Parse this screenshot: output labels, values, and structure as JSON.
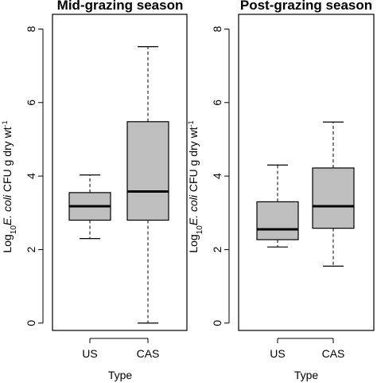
{
  "chart_data": [
    {
      "type": "boxplot",
      "title": "Mid-grazing season",
      "xlabel": "Type",
      "ylabel": {
        "prefix": "Log",
        "sub": "10",
        "italic": "E. coli",
        "rest": " CFU g dry wt",
        "sup": "-1"
      },
      "categories": [
        "US",
        "CAS"
      ],
      "ylim": [
        -0.2,
        8.4
      ],
      "yticks": [
        "0",
        "2",
        "4",
        "6",
        "8"
      ],
      "series": [
        {
          "category": "US",
          "min": 2.3,
          "q1": 2.8,
          "median": 3.18,
          "q3": 3.55,
          "max": 4.03
        },
        {
          "category": "CAS",
          "min": 0.0,
          "q1": 2.8,
          "median": 3.58,
          "q3": 5.48,
          "max": 7.52
        }
      ]
    },
    {
      "type": "boxplot",
      "title": "Post-grazing season",
      "xlabel": "Type",
      "ylabel": {
        "prefix": "Log",
        "sub": "10",
        "italic": "E. coli",
        "rest": " CFU g dry wt",
        "sup": "-1"
      },
      "categories": [
        "US",
        "CAS"
      ],
      "ylim": [
        -0.2,
        8.4
      ],
      "yticks": [
        "0",
        "2",
        "4",
        "6",
        "8"
      ],
      "series": [
        {
          "category": "US",
          "min": 2.07,
          "q1": 2.27,
          "median": 2.55,
          "q3": 3.3,
          "max": 4.3
        },
        {
          "category": "CAS",
          "min": 1.55,
          "q1": 2.58,
          "median": 3.18,
          "q3": 4.22,
          "max": 5.47
        }
      ]
    }
  ],
  "colors": {
    "box_fill": "#bebebe",
    "stroke": "#000000"
  }
}
